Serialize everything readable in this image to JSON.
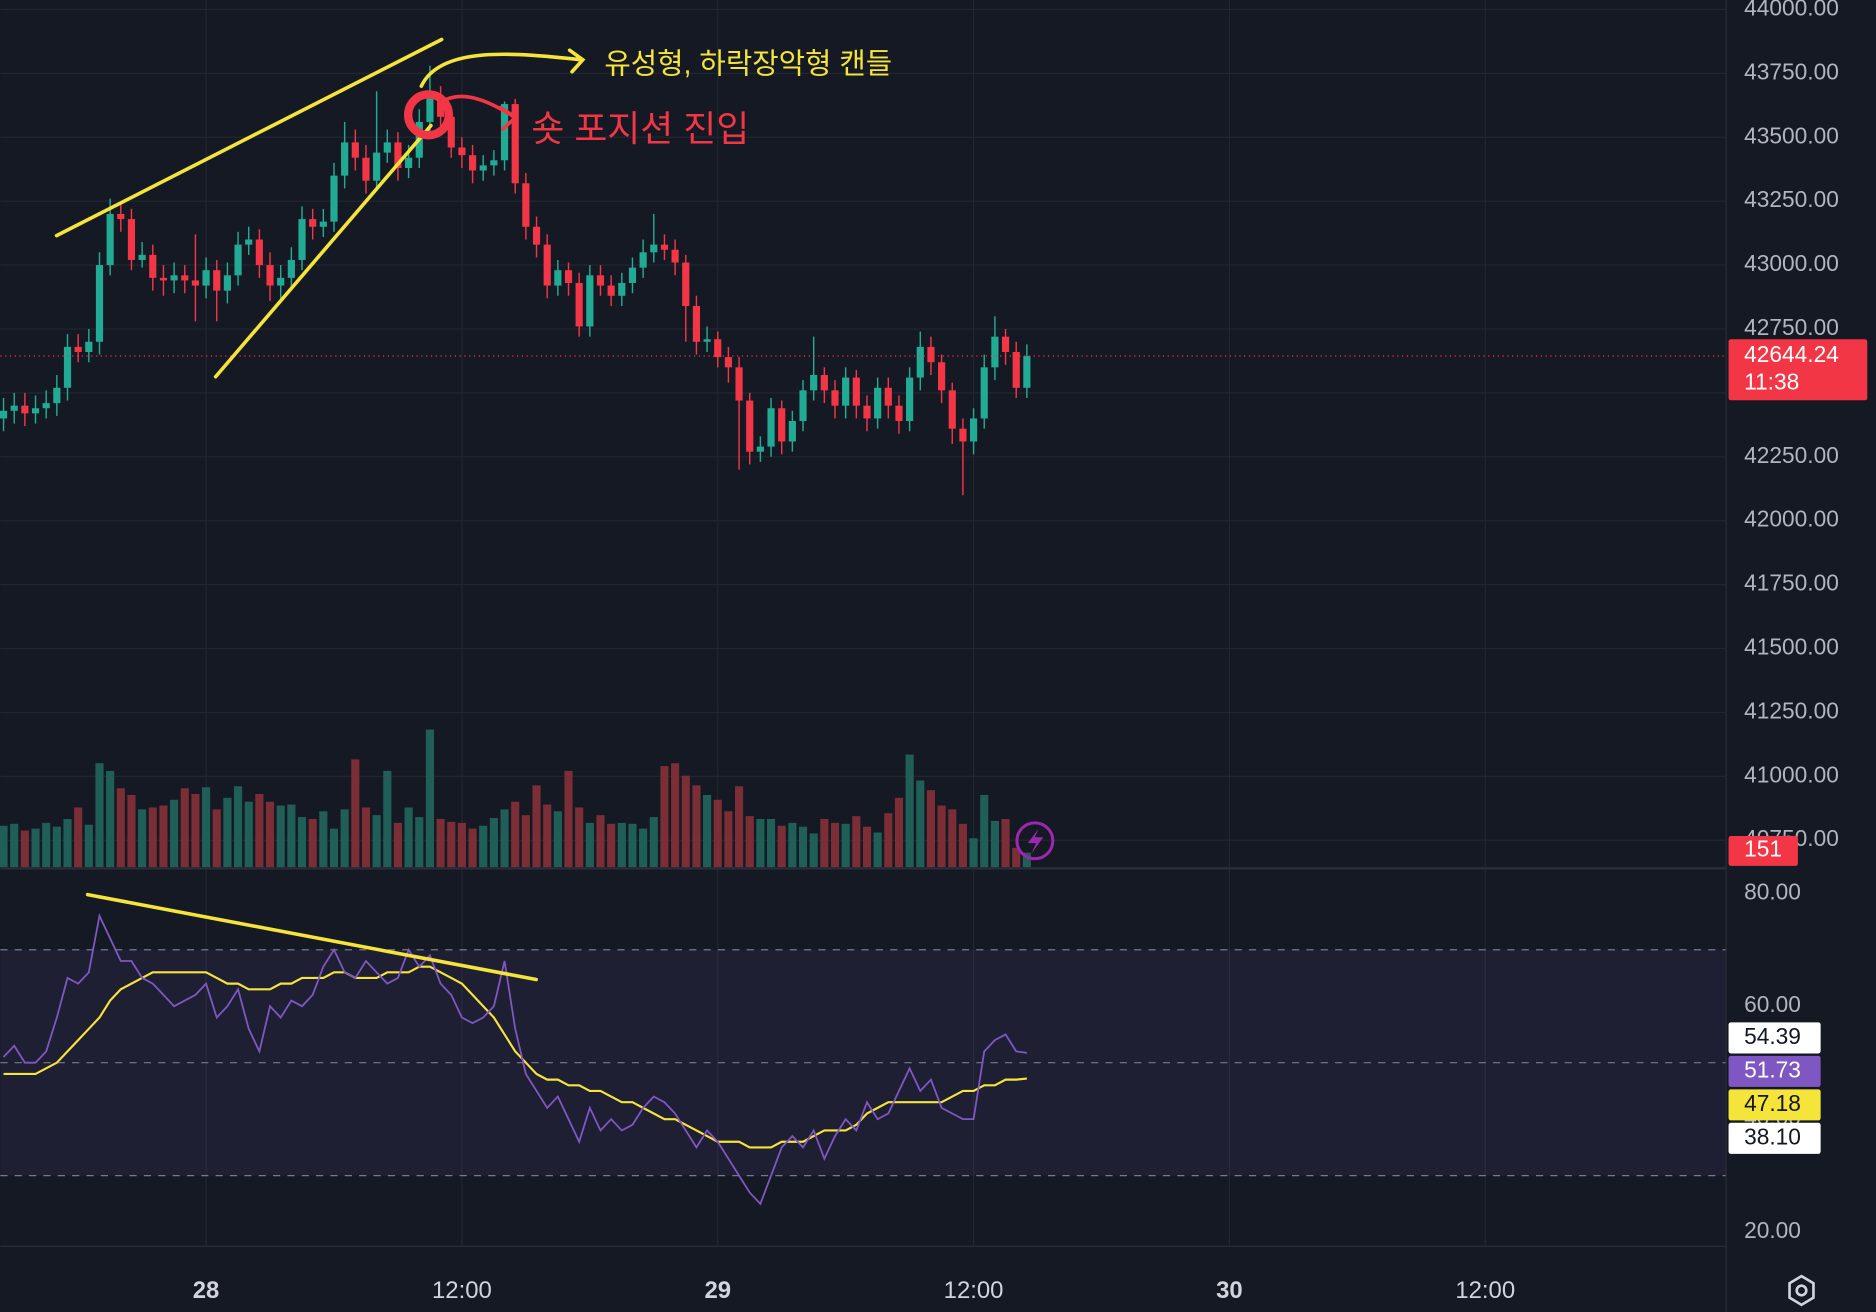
{
  "chart_data": {
    "type": "candlestick",
    "annotations": [
      "유성형, 하락장악형 캔들",
      "숏 포지션 진입"
    ],
    "up_color": "#22ab94",
    "down_color": "#f23645",
    "volume_up_color": "#1f5f58",
    "volume_down_color": "#7b2e35",
    "rsi_color": "#7e57c2",
    "rsi_ma_color": "#f5e43a",
    "xlim": [
      -9.65,
      71.3
    ],
    "xticks": [
      {
        "value": 0,
        "label": "28"
      },
      {
        "value": 12,
        "label": "12:00"
      },
      {
        "value": 24,
        "label": "29"
      },
      {
        "value": 36,
        "label": "12:00"
      },
      {
        "value": 48,
        "label": "30"
      },
      {
        "value": 60,
        "label": "12:00"
      }
    ],
    "ylim": [
      40645,
      44037
    ],
    "yticks": [
      {
        "value": 40750,
        "label": "40750.00"
      },
      {
        "value": 41000,
        "label": "41000.00"
      },
      {
        "value": 41250,
        "label": "41250.00"
      },
      {
        "value": 41500,
        "label": "41500.00"
      },
      {
        "value": 41750,
        "label": "41750.00"
      },
      {
        "value": 42000,
        "label": "42000.00"
      },
      {
        "value": 42250,
        "label": "42250.00"
      },
      {
        "value": 42500,
        "label": "42500.00"
      },
      {
        "value": 42750,
        "label": "42750.00"
      },
      {
        "value": 43000,
        "label": "43000.00"
      },
      {
        "value": 43250,
        "label": "43250.00"
      },
      {
        "value": 43500,
        "label": "43500.00"
      },
      {
        "value": 43750,
        "label": "43750.00"
      },
      {
        "value": 44000,
        "label": "44000.00"
      }
    ],
    "grid": true,
    "countdown": "11:38",
    "x": [
      -9.5,
      -9,
      -8.5,
      -8,
      -7.5,
      -7,
      -6.5,
      -6,
      -5.5,
      -5,
      -4.5,
      -4,
      -3.5,
      -3,
      -2.5,
      -2,
      -1.5,
      -1,
      -0.5,
      0,
      0.5,
      1,
      1.5,
      2,
      2.5,
      3,
      3.5,
      4,
      4.5,
      5,
      5.5,
      6,
      6.5,
      7,
      7.5,
      8,
      8.5,
      9,
      9.5,
      10,
      10.5,
      11,
      11.5,
      12,
      12.5,
      13,
      13.5,
      14,
      14.5,
      15,
      15.5,
      16,
      16.5,
      17,
      17.5,
      18,
      18.5,
      19,
      19.5,
      20,
      20.5,
      21,
      21.5,
      22,
      22.5,
      23,
      23.5,
      24,
      24.5,
      25,
      25.5,
      26,
      26.5,
      27,
      27.5,
      28,
      28.5,
      29,
      29.5,
      30,
      30.5,
      31,
      31.5,
      32,
      32.5,
      33,
      33.5,
      34,
      34.5,
      35,
      35.5,
      36,
      36.5,
      37,
      37.5,
      38,
      38.5
    ],
    "open": [
      42400,
      42430,
      42450,
      42420,
      42440,
      42460,
      42520,
      42680,
      42660,
      42700,
      43000,
      43200,
      43180,
      43020,
      43040,
      42950,
      42940,
      42960,
      42940,
      42920,
      42980,
      42900,
      42960,
      43080,
      43100,
      43000,
      42920,
      42950,
      43020,
      43180,
      43150,
      43170,
      43350,
      43480,
      43420,
      43330,
      43440,
      43480,
      43380,
      43420,
      43560,
      43660,
      43580,
      43460,
      43430,
      43370,
      43390,
      43410,
      43630,
      43320,
      43150,
      43080,
      42920,
      42980,
      42930,
      42760,
      42960,
      42920,
      42880,
      42930,
      42990,
      43050,
      43080,
      43060,
      43010,
      42840,
      42700,
      42710,
      42640,
      42600,
      42470,
      42270,
      42290,
      42440,
      42310,
      42390,
      42510,
      42570,
      42510,
      42450,
      42560,
      42450,
      42400,
      42520,
      42450,
      42390,
      42560,
      42680,
      42620,
      42510,
      42360,
      42310,
      42400,
      42600,
      42720,
      42660,
      42520
    ],
    "high": [
      42480,
      42500,
      42500,
      42490,
      42510,
      42570,
      42730,
      42730,
      42750,
      43050,
      43260,
      43250,
      43220,
      43090,
      43080,
      43000,
      43010,
      43000,
      43120,
      43030,
      43020,
      43010,
      43130,
      43150,
      43140,
      43050,
      43000,
      43070,
      43230,
      43220,
      43220,
      43400,
      43560,
      43530,
      43470,
      43680,
      43530,
      43520,
      43470,
      43610,
      43780,
      43700,
      43620,
      43500,
      43470,
      43430,
      43450,
      43640,
      43650,
      43360,
      43190,
      43120,
      43020,
      43010,
      42970,
      43000,
      43000,
      42960,
      42970,
      43030,
      43100,
      43200,
      43120,
      43100,
      43040,
      42880,
      42760,
      42740,
      42680,
      42640,
      42500,
      42330,
      42480,
      42470,
      42430,
      42550,
      42720,
      42600,
      42550,
      42600,
      42590,
      42490,
      42560,
      42560,
      42490,
      42600,
      42740,
      42720,
      42650,
      42540,
      42400,
      42440,
      42650,
      42800,
      42750,
      42700,
      42690
    ],
    "low": [
      42350,
      42380,
      42370,
      42380,
      42400,
      42410,
      42470,
      42620,
      42620,
      42650,
      42960,
      43130,
      42980,
      42990,
      42900,
      42880,
      42890,
      42890,
      42780,
      42870,
      42780,
      42850,
      42920,
      43040,
      42950,
      42860,
      42870,
      42900,
      42980,
      43100,
      43110,
      43130,
      43300,
      43370,
      43280,
      43290,
      43400,
      43330,
      43340,
      43380,
      43520,
      43540,
      43420,
      43380,
      43320,
      43330,
      43350,
      43370,
      43280,
      43100,
      43030,
      42870,
      42880,
      42880,
      42720,
      42720,
      42880,
      42840,
      42840,
      42890,
      42950,
      43010,
      43020,
      42960,
      42700,
      42650,
      42660,
      42600,
      42540,
      42200,
      42220,
      42230,
      42250,
      42260,
      42270,
      42350,
      42470,
      42460,
      42400,
      42400,
      42400,
      42350,
      42360,
      42400,
      42340,
      42350,
      42510,
      42570,
      42460,
      42300,
      42100,
      42260,
      42360,
      42550,
      42610,
      42480,
      42480
    ],
    "close": [
      42430,
      42450,
      42420,
      42440,
      42460,
      42520,
      42680,
      42660,
      42700,
      43000,
      43200,
      43180,
      43020,
      43040,
      42950,
      42940,
      42960,
      42940,
      42920,
      42980,
      42900,
      42960,
      43080,
      43100,
      43000,
      42920,
      42950,
      43020,
      43180,
      43150,
      43170,
      43350,
      43480,
      43420,
      43330,
      43440,
      43480,
      43380,
      43420,
      43560,
      43660,
      43580,
      43460,
      43430,
      43370,
      43390,
      43410,
      43630,
      43320,
      43150,
      43080,
      42920,
      42980,
      42930,
      42760,
      42960,
      42920,
      42880,
      42930,
      42990,
      43050,
      43080,
      43060,
      43010,
      42840,
      42700,
      42710,
      42640,
      42600,
      42470,
      42270,
      42290,
      42440,
      42310,
      42390,
      42510,
      42570,
      42510,
      42450,
      42560,
      42450,
      42400,
      42520,
      42450,
      42390,
      42560,
      42680,
      42620,
      42510,
      42360,
      42310,
      42400,
      42600,
      42720,
      42660,
      42520,
      42644.24
    ],
    "volume": [
      430,
      450,
      380,
      400,
      460,
      420,
      500,
      620,
      440,
      1080,
      1000,
      820,
      750,
      600,
      620,
      640,
      700,
      820,
      760,
      830,
      600,
      720,
      840,
      680,
      760,
      680,
      640,
      650,
      520,
      500,
      580,
      400,
      600,
      1120,
      620,
      540,
      1000,
      460,
      620,
      520,
      1430,
      500,
      470,
      460,
      400,
      430,
      510,
      600,
      680,
      540,
      850,
      650,
      580,
      1000,
      620,
      460,
      540,
      450,
      460,
      450,
      400,
      520,
      1050,
      1080,
      950,
      850,
      750,
      700,
      580,
      840,
      530,
      500,
      500,
      430,
      460,
      420,
      350,
      500,
      460,
      450,
      530,
      420,
      360,
      560,
      720,
      1170,
      900,
      800,
      640,
      600,
      450,
      300,
      750,
      480,
      500,
      200,
      151
    ],
    "rsi": [
      51,
      53,
      50,
      50,
      52,
      58,
      65,
      64,
      66,
      76,
      72,
      68,
      68,
      65,
      64,
      62,
      60,
      61,
      62,
      64,
      58,
      60,
      63,
      56,
      52,
      60,
      58,
      61,
      60,
      62,
      67,
      70,
      66,
      65,
      68,
      66,
      64,
      65,
      70,
      67,
      69,
      64,
      62,
      58,
      57,
      58,
      60,
      68,
      56,
      48,
      45,
      42,
      44,
      40,
      36,
      42,
      38,
      40,
      38,
      39,
      42,
      44,
      43,
      41,
      38,
      35,
      38,
      36,
      33,
      30,
      27,
      25,
      30,
      35,
      37,
      35,
      38,
      33,
      37,
      40,
      38,
      43,
      40,
      41,
      45,
      49,
      45,
      47,
      42,
      41,
      40,
      40,
      52,
      54,
      55,
      52,
      51.73
    ],
    "rsi_ma": [
      48,
      48,
      48,
      48,
      49,
      50,
      52,
      54,
      56,
      58,
      61,
      63,
      64,
      65,
      66,
      66,
      66,
      66,
      66,
      66,
      65,
      64,
      64,
      63,
      63,
      63,
      64,
      64,
      65,
      65,
      65,
      66,
      66,
      65,
      65,
      65,
      66,
      66,
      66,
      67,
      67,
      66,
      65,
      64,
      62,
      60,
      58,
      55,
      52,
      50,
      48,
      47,
      47,
      46,
      46,
      45,
      45,
      44,
      43,
      43,
      42,
      41,
      40,
      40,
      39,
      38,
      37,
      36,
      36,
      36,
      35,
      35,
      35,
      36,
      36,
      36,
      37,
      38,
      38,
      38,
      39,
      41,
      42,
      43,
      43,
      43,
      43,
      43,
      43,
      44,
      45,
      45,
      46,
      46,
      47,
      47,
      47.18
    ],
    "rsi_ylim": [
      17.5,
      84
    ],
    "rsi_yticks": [
      {
        "value": 20,
        "label": "20.00"
      },
      {
        "value": 40,
        "label": "40.00"
      },
      {
        "value": 60,
        "label": "60.00"
      },
      {
        "value": 80,
        "label": "80.00"
      }
    ],
    "rsi_levels": [
      70,
      50,
      30
    ],
    "rsi_tags": [
      {
        "value": 54.39,
        "color": "#ffffff"
      },
      {
        "value": 38.1,
        "label": "38.10",
        "color": "#ffffff"
      }
    ]
  }
}
